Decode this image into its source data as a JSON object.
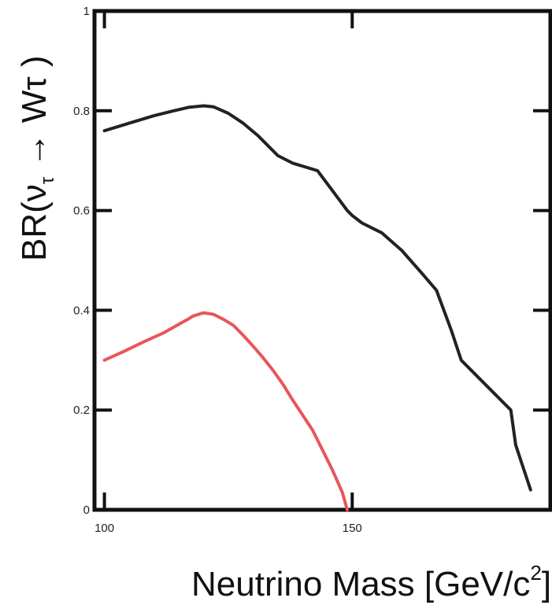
{
  "chart_data": {
    "type": "line",
    "xlabel_text": "Neutrino Mass [GeV/c",
    "xlabel_sup": "2",
    "xlabel_close": "]",
    "ylabel_text": "BR(ν",
    "ylabel_sub": "τ",
    "ylabel_arrow": " → Wτ )",
    "xlim": [
      98,
      190
    ],
    "ylim": [
      0,
      1
    ],
    "xticks": [
      {
        "value": 100,
        "label": "100"
      },
      {
        "value": 150,
        "label": "150"
      }
    ],
    "yticks": [
      {
        "value": 0,
        "label": "0"
      },
      {
        "value": 0.2,
        "label": "0.2"
      },
      {
        "value": 0.4,
        "label": "0.4"
      },
      {
        "value": 0.6,
        "label": "0.6"
      },
      {
        "value": 0.8,
        "label": "0.8"
      },
      {
        "value": 1,
        "label": "1"
      }
    ],
    "grid": false,
    "series": [
      {
        "color": "#222222",
        "x": [
          100,
          105,
          110,
          114,
          117,
          120,
          122,
          125,
          128,
          131,
          133,
          135,
          138,
          143,
          146,
          149,
          150,
          152,
          156,
          160,
          164,
          167,
          170,
          172,
          176,
          179,
          182,
          183,
          185,
          186
        ],
        "y": [
          0.76,
          0.775,
          0.79,
          0.8,
          0.807,
          0.81,
          0.808,
          0.795,
          0.775,
          0.75,
          0.73,
          0.71,
          0.695,
          0.68,
          0.64,
          0.6,
          0.59,
          0.575,
          0.555,
          0.52,
          0.475,
          0.44,
          0.36,
          0.3,
          0.26,
          0.23,
          0.2,
          0.13,
          0.07,
          0.04
        ]
      },
      {
        "color": "#e8565a",
        "x": [
          100,
          104,
          108,
          112,
          115,
          117,
          118,
          120,
          122,
          124,
          126,
          128,
          130,
          132,
          134,
          136,
          138,
          140,
          142,
          144,
          146,
          148,
          149
        ],
        "y": [
          0.3,
          0.318,
          0.337,
          0.355,
          0.372,
          0.383,
          0.389,
          0.395,
          0.392,
          0.382,
          0.37,
          0.35,
          0.328,
          0.305,
          0.28,
          0.252,
          0.22,
          0.19,
          0.16,
          0.12,
          0.08,
          0.035,
          0.0
        ]
      }
    ]
  }
}
